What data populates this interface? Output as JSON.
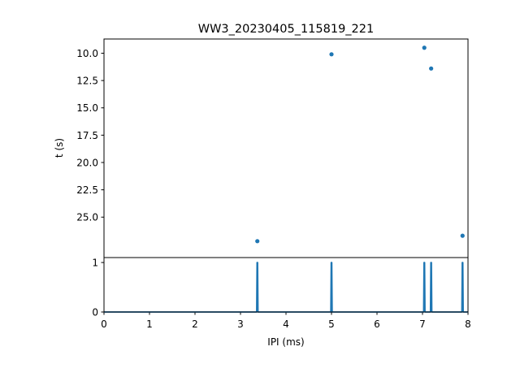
{
  "chart_data": [
    {
      "type": "scatter",
      "title": "WW3_20230405_115819_221",
      "xlabel": "",
      "ylabel": "t (s)",
      "xlim": [
        0,
        8
      ],
      "ylim": [
        28.7,
        8.7
      ],
      "y_inverted": true,
      "yticks": [
        10.0,
        12.5,
        15.0,
        17.5,
        20.0,
        22.5,
        25.0
      ],
      "ytick_labels": [
        "10.0",
        "12.5",
        "15.0",
        "17.5",
        "20.0",
        "22.5",
        "25.0"
      ],
      "color": "#1f77b4",
      "points": [
        {
          "x": 3.37,
          "y": 27.2
        },
        {
          "x": 5.0,
          "y": 10.1
        },
        {
          "x": 7.04,
          "y": 9.5
        },
        {
          "x": 7.19,
          "y": 11.4
        },
        {
          "x": 7.88,
          "y": 26.7
        }
      ]
    },
    {
      "type": "line",
      "xlabel": "IPI (ms)",
      "ylabel": "",
      "xlim": [
        0,
        8
      ],
      "ylim": [
        0,
        1.1
      ],
      "xticks": [
        0,
        1,
        2,
        3,
        4,
        5,
        6,
        7,
        8
      ],
      "xtick_labels": [
        "0",
        "1",
        "2",
        "3",
        "4",
        "5",
        "6",
        "7",
        "8"
      ],
      "yticks": [
        0,
        1
      ],
      "ytick_labels": [
        "0",
        "1"
      ],
      "color": "#1f77b4",
      "spikes_at_x": [
        3.37,
        5.0,
        7.04,
        7.19,
        7.88
      ],
      "spike_height": 1
    }
  ]
}
